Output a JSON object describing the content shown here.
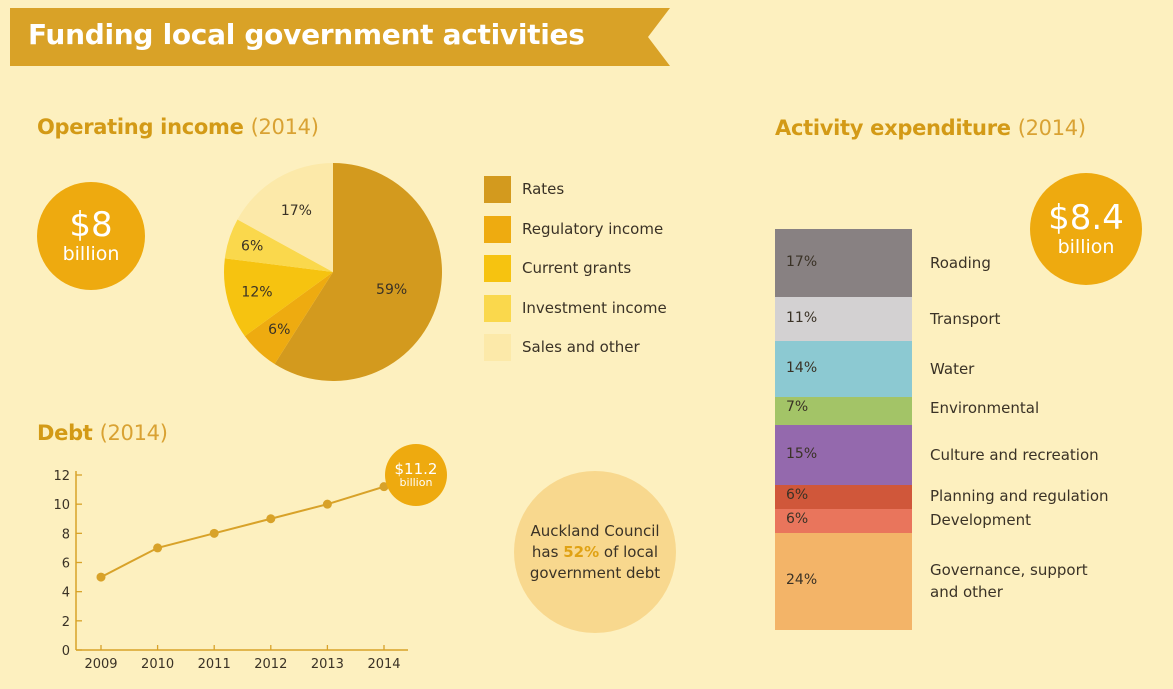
{
  "header": {
    "title": "Funding local government activities"
  },
  "income": {
    "title": "Operating income",
    "year": "(2014)",
    "total_amount": "$8",
    "total_unit": "billion"
  },
  "expenditure": {
    "title": "Activity expenditure",
    "year": "(2014)",
    "total_amount": "$8.4",
    "total_unit": "billion"
  },
  "debt": {
    "title": "Debt",
    "year": "(2014)",
    "bubble_amount": "$11.2",
    "bubble_unit": "billion"
  },
  "auckland": {
    "line1": "Auckland Council",
    "line2_prefix": "has ",
    "line2_highlight": "52%",
    "line2_suffix": " of local",
    "line3": "government debt"
  },
  "chart_data": [
    {
      "type": "pie",
      "title": "Operating income (2014)",
      "slices": [
        {
          "label": "Rates",
          "value": 59,
          "display": "59%",
          "color": "#d39a1e"
        },
        {
          "label": "Regulatory income",
          "value": 6,
          "display": "6%",
          "color": "#eeab10"
        },
        {
          "label": "Current grants",
          "value": 12,
          "display": "12%",
          "color": "#f6c310"
        },
        {
          "label": "Investment income",
          "value": 6,
          "display": "6%",
          "color": "#fad84c"
        },
        {
          "label": "Sales and other",
          "value": 17,
          "display": "17%",
          "color": "#fce9a9"
        }
      ]
    },
    {
      "type": "line",
      "title": "Debt (2014)",
      "x": [
        "2009",
        "2010",
        "2011",
        "2012",
        "2013",
        "2014"
      ],
      "values": [
        5,
        7,
        8,
        9,
        10,
        11.2
      ],
      "yticks": [
        "0",
        "2",
        "4",
        "6",
        "8",
        "10",
        "12"
      ],
      "ylim": [
        0,
        12
      ],
      "color": "#d8a229"
    },
    {
      "type": "bar",
      "title": "Activity expenditure (2014)",
      "stacked": true,
      "segments": [
        {
          "label": "Roading",
          "value": 17,
          "display": "17%",
          "color": "#888182"
        },
        {
          "label": "Transport",
          "value": 11,
          "display": "11%",
          "color": "#d3d1d2"
        },
        {
          "label": "Water",
          "value": 14,
          "display": "14%",
          "color": "#8cc9d2"
        },
        {
          "label": "Environmental",
          "value": 7,
          "display": "7%",
          "color": "#a3c467"
        },
        {
          "label": "Culture and recreation",
          "value": 15,
          "display": "15%",
          "color": "#9469ad"
        },
        {
          "label": "Planning and regulation",
          "value": 6,
          "display": "6%",
          "color": "#d0573a"
        },
        {
          "label": "Development",
          "value": 6,
          "display": "6%",
          "color": "#e9755c"
        },
        {
          "label": "Governance, support|and other",
          "value": 24,
          "display": "24%",
          "color": "#f3b468"
        }
      ]
    }
  ]
}
